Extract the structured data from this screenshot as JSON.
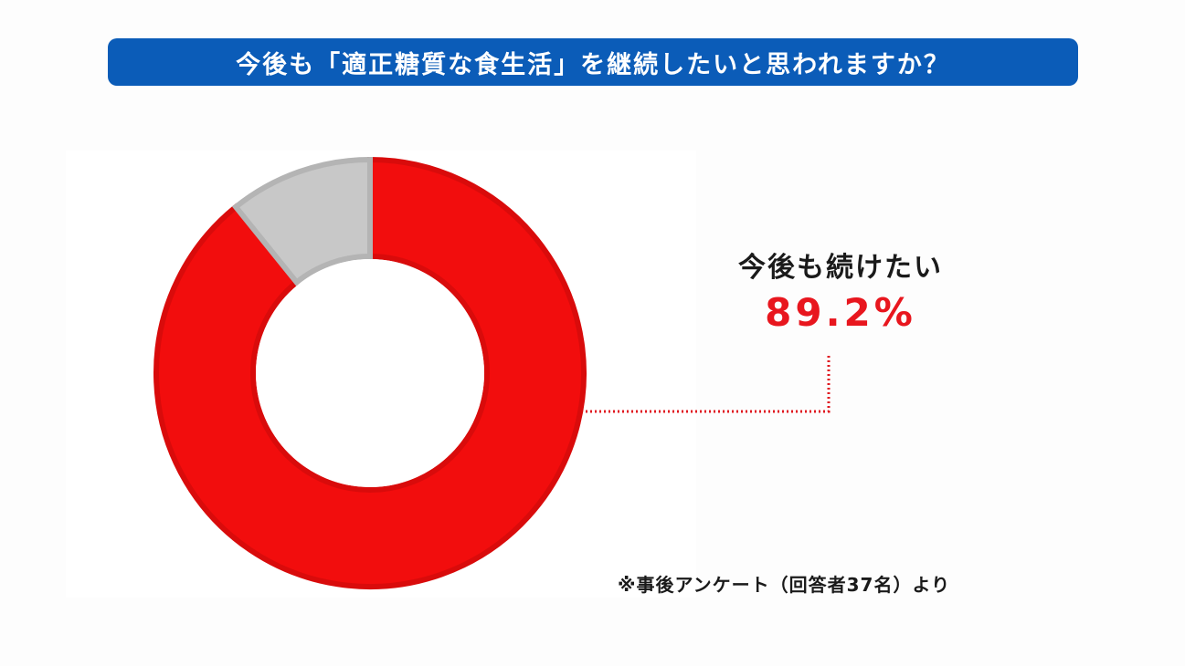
{
  "title": "今後も「適正糖質な食生活」を継続したいと思われますか？",
  "callout": {
    "label": "今後も続けたい",
    "value_text": "89.2%"
  },
  "footnote": "※事後アンケート（回答者37名）より",
  "colors": {
    "title_bg": "#0b5cb8",
    "primary": "#f20d0d",
    "primary_edge": "#d90b0b",
    "secondary": "#c8c8c8",
    "secondary_edge": "#b4b4b4",
    "value_text": "#e8161e",
    "leader": "#e0161e"
  },
  "chart_data": {
    "type": "pie",
    "variant": "donut",
    "slices": [
      {
        "label": "今後も続けたい",
        "value": 89.2,
        "color": "#f20d0d"
      },
      {
        "label": "",
        "value": 10.8,
        "color": "#c8c8c8"
      }
    ]
  }
}
